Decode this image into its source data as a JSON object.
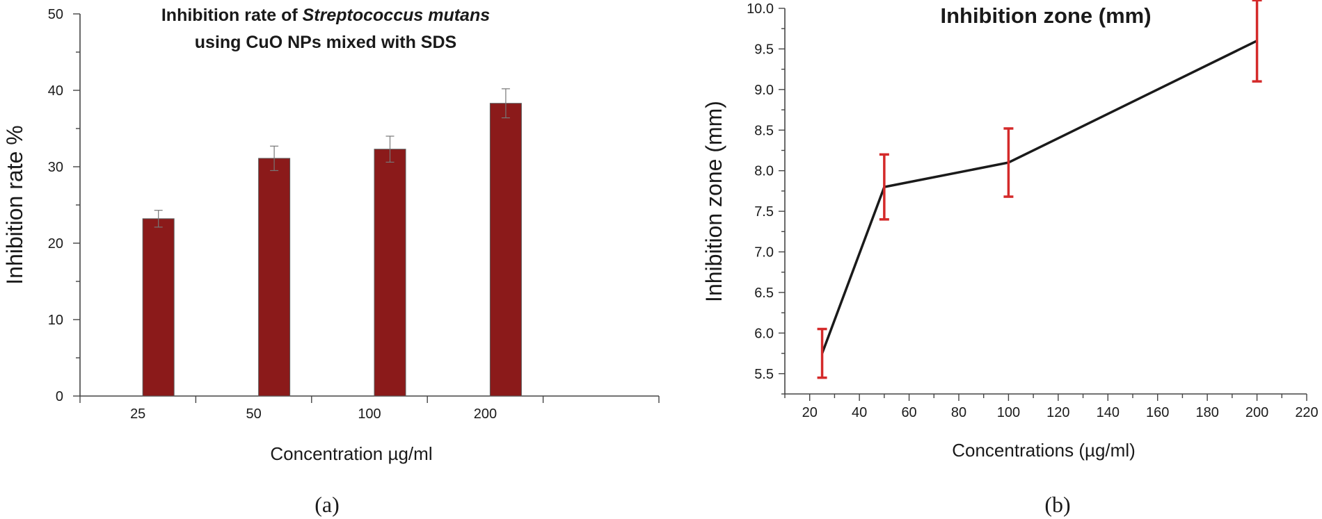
{
  "chart_data": [
    {
      "type": "bar",
      "panel_label": "(a)",
      "title_line1_prefix": "Inhibition rate of ",
      "title_line1_italic": "Streptococcus mutans",
      "title_line2": "using CuO NPs mixed  with SDS",
      "xlabel": "Concentration µg/ml",
      "ylabel": "Inhibition rate %",
      "categories": [
        "25",
        "50",
        "100",
        "200"
      ],
      "values": [
        23.2,
        31.1,
        32.3,
        38.3
      ],
      "errors": [
        1.1,
        1.6,
        1.7,
        1.9
      ],
      "ylim": [
        0,
        50
      ],
      "yticks": [
        "0",
        "10",
        "20",
        "30",
        "40",
        "50"
      ],
      "colors": {
        "bar": "#8b1a1a",
        "error": "#777777"
      }
    },
    {
      "type": "line",
      "panel_label": "(b)",
      "title": "Inhibition zone (mm)",
      "xlabel": "Concentrations (µg/ml)",
      "ylabel": "Inhibition zone (mm)",
      "x": [
        25,
        50,
        100,
        200
      ],
      "y": [
        5.75,
        7.8,
        8.1,
        9.6
      ],
      "errors": [
        0.3,
        0.4,
        0.42,
        0.5
      ],
      "xlim": [
        10,
        220
      ],
      "ylim": [
        5.25,
        10.0
      ],
      "xticks": [
        "20",
        "40",
        "60",
        "80",
        "100",
        "120",
        "140",
        "160",
        "180",
        "200",
        "220"
      ],
      "yticks": [
        "5.5",
        "6.0",
        "6.5",
        "7.0",
        "7.5",
        "8.0",
        "8.5",
        "9.0",
        "9.5",
        "10.0"
      ],
      "colors": {
        "line": "#1a1a1a",
        "error": "#d42a2a"
      }
    }
  ]
}
